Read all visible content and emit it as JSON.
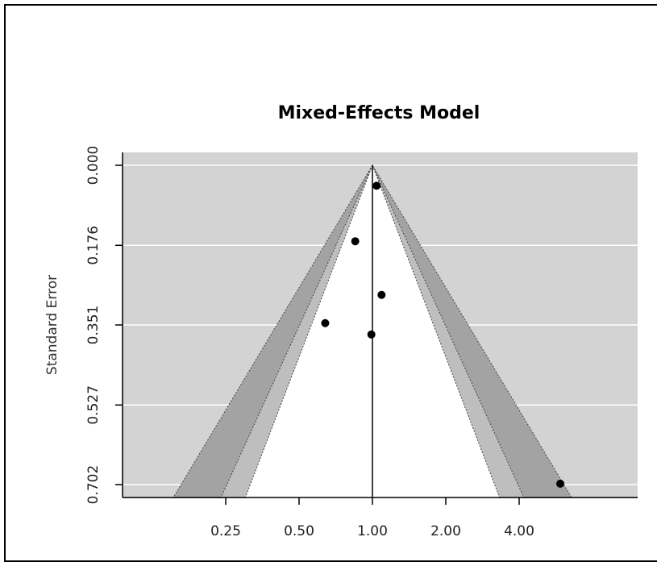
{
  "chart_data": {
    "type": "scatter",
    "subtype": "funnel",
    "title": "Mixed-Effects Model",
    "xlabel": "",
    "ylabel": "Standard Error",
    "x_scale": "log",
    "y_reversed": true,
    "xlim": [
      0.134,
      6.35
    ],
    "ylim": [
      0,
      0.702
    ],
    "x_ticks": [
      {
        "value": 0.25,
        "label": "0.25"
      },
      {
        "value": 0.5,
        "label": "0.50"
      },
      {
        "value": 1.0,
        "label": "1.00"
      },
      {
        "value": 2.0,
        "label": "2.00"
      },
      {
        "value": 4.0,
        "label": "4.00"
      }
    ],
    "y_ticks": [
      {
        "value": 0.0,
        "label": "0.000"
      },
      {
        "value": 0.176,
        "label": "0.176"
      },
      {
        "value": 0.351,
        "label": "0.351"
      },
      {
        "value": 0.527,
        "label": "0.527"
      },
      {
        "value": 0.702,
        "label": "0.702"
      }
    ],
    "reference_value": 1.0,
    "contour_levels": [
      0.9,
      0.95,
      0.99
    ],
    "colors": {
      "background": "#d3d3d3",
      "inner_region": "#ffffff",
      "band_090_095": "#bebebe",
      "band_095_099": "#a3a3a3",
      "points": "#000000",
      "gridlines": "#ffffff"
    },
    "grid": true,
    "points": [
      {
        "x": 1.04,
        "y": 0.045
      },
      {
        "x": 0.85,
        "y": 0.167
      },
      {
        "x": 1.09,
        "y": 0.285
      },
      {
        "x": 0.64,
        "y": 0.347
      },
      {
        "x": 0.99,
        "y": 0.372
      },
      {
        "x": 5.9,
        "y": 0.7
      }
    ]
  }
}
